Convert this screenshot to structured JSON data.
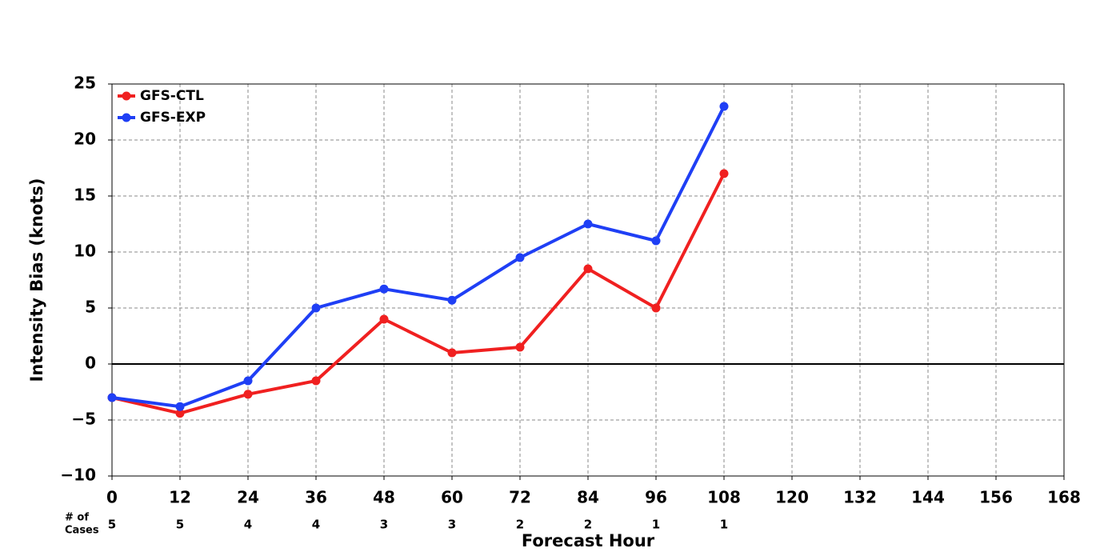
{
  "chart_data": {
    "type": "line",
    "xlabel": "Forecast Hour",
    "ylabel": "Intensity Bias (knots)",
    "x": [
      0,
      12,
      24,
      36,
      48,
      60,
      72,
      84,
      96,
      108
    ],
    "series": [
      {
        "name": "GFS-CTL",
        "color": "#f02020",
        "values": [
          -3,
          -4.4,
          -2.7,
          -1.5,
          4,
          1,
          1.5,
          8.5,
          5,
          17
        ]
      },
      {
        "name": "GFS-EXP",
        "color": "#1f3ff5",
        "values": [
          -3,
          -3.8,
          -1.5,
          5,
          6.7,
          5.7,
          9.5,
          12.5,
          11,
          23
        ]
      }
    ],
    "xlim": [
      0,
      168
    ],
    "xticks": [
      0,
      12,
      24,
      36,
      48,
      60,
      72,
      84,
      96,
      108,
      120,
      132,
      144,
      156,
      168
    ],
    "ylim": [
      -10,
      25
    ],
    "yticks": [
      {
        "value": -10,
        "label": "−10"
      },
      {
        "value": -5,
        "label": "−5"
      },
      0,
      5,
      10,
      15,
      20,
      25
    ],
    "grid": true,
    "legend": "upper left",
    "cases_label": [
      "# of",
      "Cases"
    ],
    "cases": [
      5,
      5,
      4,
      4,
      3,
      3,
      2,
      2,
      1,
      1
    ]
  }
}
